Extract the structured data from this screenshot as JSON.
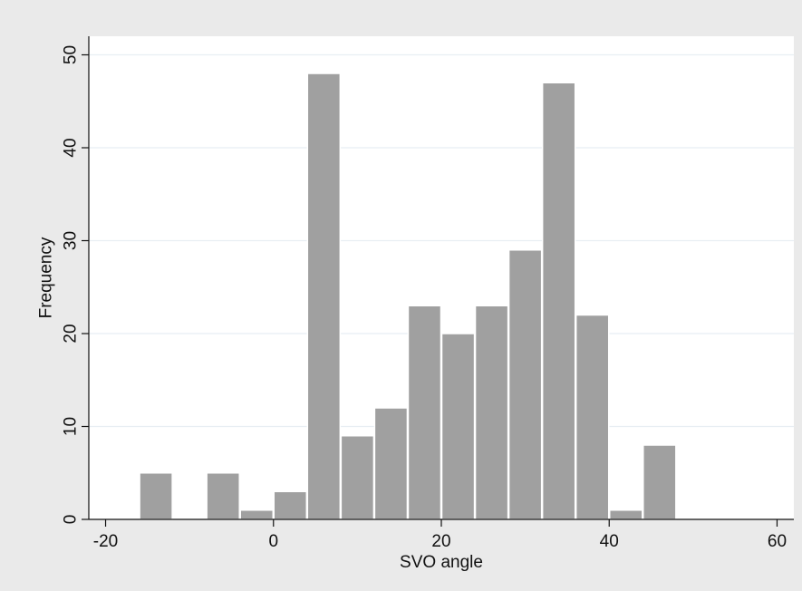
{
  "colors": {
    "background": "#ffffff",
    "outer_panel": "#eaeaea",
    "plot_area": "#ffffff",
    "bar_fill": "#a0a0a0",
    "bar_stroke": "#ffffff",
    "grid": "#e8eef3",
    "axis": "#111111"
  },
  "chart_data": {
    "type": "bar",
    "title": "",
    "xlabel": "SVO angle",
    "ylabel": "Frequency",
    "grid": true,
    "xlim": [
      -22,
      62
    ],
    "ylim": [
      0,
      52
    ],
    "x_ticks": [
      -20,
      0,
      20,
      40,
      60
    ],
    "x_tick_labels": [
      "-20",
      "0",
      "20",
      "40",
      "60"
    ],
    "y_ticks": [
      0,
      10,
      20,
      30,
      40,
      50
    ],
    "y_tick_labels": [
      "0",
      "10",
      "20",
      "30",
      "40",
      "50"
    ],
    "bin_width": 4,
    "bins": [
      {
        "start": -16,
        "end": -12,
        "value": 5
      },
      {
        "start": -8,
        "end": -4,
        "value": 5
      },
      {
        "start": -4,
        "end": 0,
        "value": 1
      },
      {
        "start": 0,
        "end": 4,
        "value": 3
      },
      {
        "start": 4,
        "end": 8,
        "value": 48
      },
      {
        "start": 8,
        "end": 12,
        "value": 9
      },
      {
        "start": 12,
        "end": 16,
        "value": 12
      },
      {
        "start": 16,
        "end": 20,
        "value": 23
      },
      {
        "start": 20,
        "end": 24,
        "value": 20
      },
      {
        "start": 24,
        "end": 28,
        "value": 23
      },
      {
        "start": 28,
        "end": 32,
        "value": 29
      },
      {
        "start": 32,
        "end": 36,
        "value": 47
      },
      {
        "start": 36,
        "end": 40,
        "value": 22
      },
      {
        "start": 40,
        "end": 44,
        "value": 1
      },
      {
        "start": 44,
        "end": 48,
        "value": 8
      }
    ]
  }
}
